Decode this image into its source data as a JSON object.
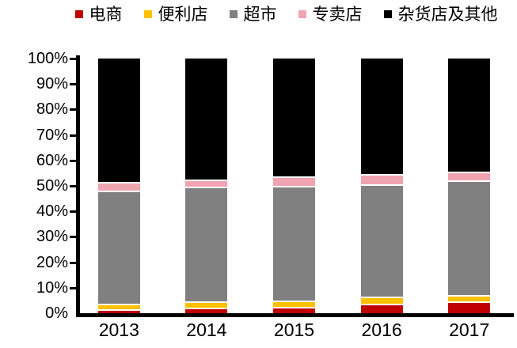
{
  "chart_data": {
    "type": "bar",
    "stacked": true,
    "title": "",
    "categories": [
      "2013",
      "2014",
      "2015",
      "2016",
      "2017"
    ],
    "series": [
      {
        "name": "电商",
        "color": "#C00000",
        "values": [
          1,
          1.5,
          2,
          3,
          4
        ]
      },
      {
        "name": "便利店",
        "color": "#FFC000",
        "values": [
          2,
          2.5,
          2.5,
          3,
          2.5
        ]
      },
      {
        "name": "超市",
        "color": "#808080",
        "values": [
          44.5,
          45,
          45,
          44,
          45
        ]
      },
      {
        "name": "专卖店",
        "color": "#F0A3B0",
        "values": [
          3.5,
          3,
          3.5,
          4,
          3.5
        ]
      },
      {
        "name": "杂货店及其他",
        "color": "#000000",
        "values": [
          49,
          48,
          47,
          46,
          45
        ]
      }
    ],
    "xlabel": "",
    "ylabel": "",
    "ylim": [
      0,
      100
    ],
    "ytick_labels": [
      "0%",
      "10%",
      "20%",
      "30%",
      "40%",
      "50%",
      "60%",
      "70%",
      "80%",
      "90%",
      "100%"
    ],
    "legend_position": "top",
    "grid": false,
    "axis_color": "#000000",
    "background_color": "#FFFFFF"
  }
}
